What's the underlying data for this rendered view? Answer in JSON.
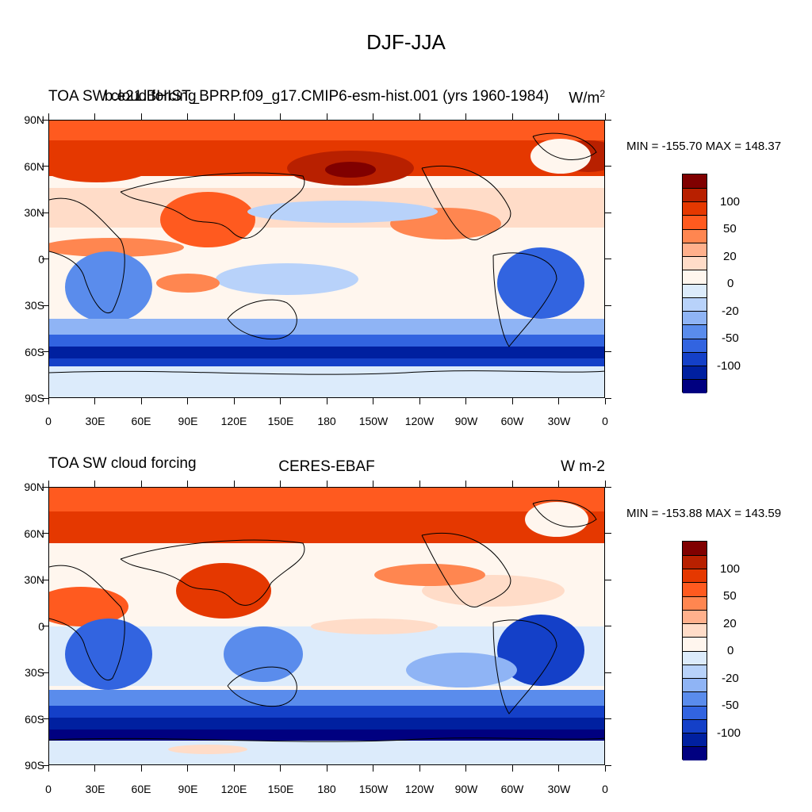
{
  "title": "DJF-JJA",
  "panels": [
    {
      "left_label": "TOA SW cloud forcing",
      "center_label": "b.e21.BHIST_BPRP.f09_g17.CMIP6-esm-hist.001 (yrs 1960-1984)",
      "units": "W/m",
      "units_sup": "2",
      "minmax": "MIN = -155.70 MAX = 148.37"
    },
    {
      "left_label": "TOA SW cloud forcing",
      "center_label": "CERES-EBAF",
      "units": "W m-2",
      "units_sup": "",
      "minmax": "MIN = -153.88 MAX = 143.59"
    }
  ],
  "lat_labels": [
    "90N",
    "60N",
    "30N",
    "0",
    "30S",
    "60S",
    "90S"
  ],
  "lon_labels": [
    "0",
    "30E",
    "60E",
    "90E",
    "120E",
    "150E",
    "180",
    "150W",
    "120W",
    "90W",
    "60W",
    "30W",
    "0"
  ],
  "colorbar": {
    "labels": [
      "100",
      "50",
      "20",
      "0",
      "-20",
      "-50",
      "-100"
    ],
    "colors": [
      "#800000",
      "#b82000",
      "#e53800",
      "#ff5a1f",
      "#ff8650",
      "#ffb08c",
      "#ffdcc8",
      "#fff6ee",
      "#dcebfb",
      "#b8d2fa",
      "#8fb4f5",
      "#5a8cec",
      "#3264e0",
      "#1440c8",
      "#0020a0",
      "#000080"
    ]
  },
  "color_scheme": "blue-white-red diverging"
}
